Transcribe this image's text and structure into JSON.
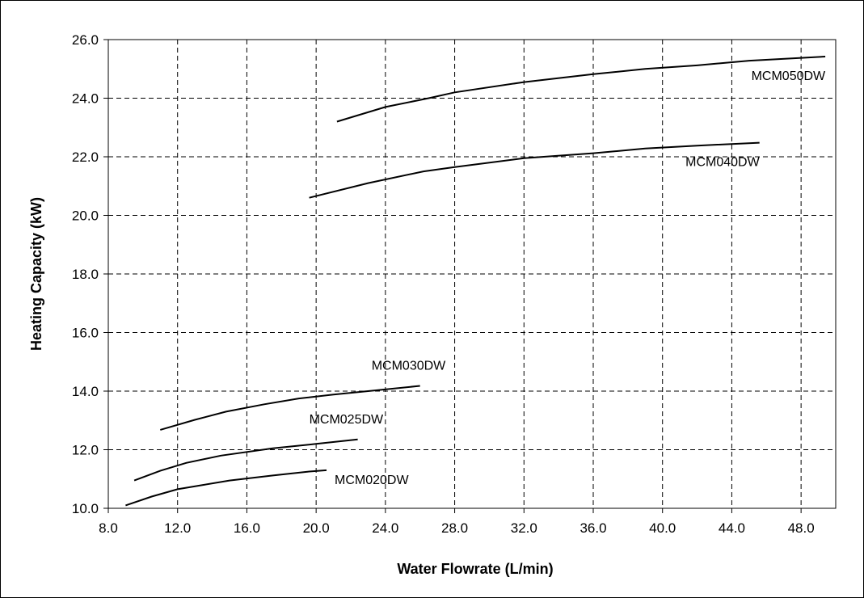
{
  "chart_data": {
    "type": "line",
    "title": "",
    "xlabel": "Water Flowrate (L/min)",
    "ylabel": "Heating Capacity (kW)",
    "xlim": [
      8.0,
      50.0
    ],
    "ylim": [
      10.0,
      26.0
    ],
    "grid": true,
    "legend": "none",
    "x_ticks": [
      "8.0",
      "12.0",
      "16.0",
      "20.0",
      "24.0",
      "28.0",
      "32.0",
      "36.0",
      "40.0",
      "44.0",
      "48.0"
    ],
    "y_ticks": [
      "10.0",
      "12.0",
      "14.0",
      "16.0",
      "18.0",
      "20.0",
      "22.0",
      "24.0",
      "26.0"
    ],
    "series": [
      {
        "name": "MCM050DW",
        "x": [
          21.2,
          24.0,
          26.5,
          28.0,
          32.0,
          36.0,
          39.0,
          42.0,
          45.0,
          49.4
        ],
        "y": [
          23.2,
          23.7,
          24.0,
          24.2,
          24.55,
          24.82,
          25.0,
          25.12,
          25.28,
          25.42
        ]
      },
      {
        "name": "MCM040DW",
        "x": [
          19.6,
          23.0,
          26.2,
          28.0,
          32.0,
          36.0,
          39.0,
          42.0,
          45.6
        ],
        "y": [
          20.6,
          21.1,
          21.5,
          21.65,
          21.95,
          22.12,
          22.28,
          22.38,
          22.48
        ]
      },
      {
        "name": "MCM030DW",
        "x": [
          11.0,
          13.0,
          14.8,
          17.0,
          19.0,
          21.0,
          23.0,
          26.0
        ],
        "y": [
          12.68,
          13.02,
          13.3,
          13.55,
          13.75,
          13.88,
          14.0,
          14.18
        ]
      },
      {
        "name": "MCM025DW",
        "x": [
          9.5,
          11.0,
          12.5,
          14.5,
          17.5,
          20.0,
          22.4
        ],
        "y": [
          10.95,
          11.28,
          11.55,
          11.8,
          12.05,
          12.2,
          12.35
        ]
      },
      {
        "name": "MCM020DW",
        "x": [
          9.0,
          10.5,
          12.0,
          13.5,
          15.0,
          17.5,
          19.5,
          20.6
        ],
        "y": [
          10.1,
          10.4,
          10.65,
          10.8,
          10.95,
          11.12,
          11.25,
          11.3
        ]
      }
    ]
  }
}
